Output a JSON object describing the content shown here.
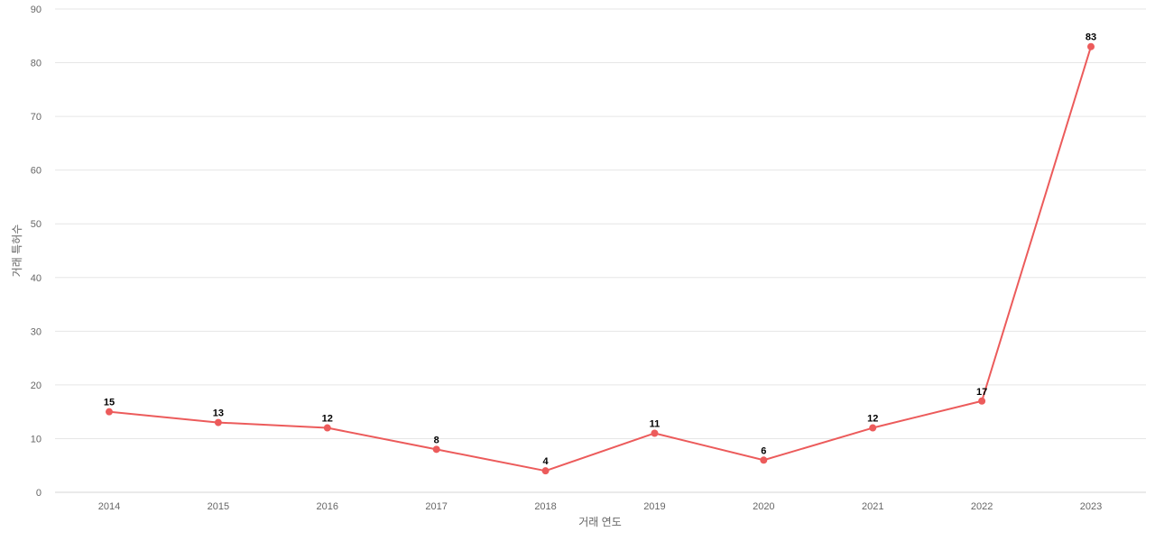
{
  "chart_data": {
    "type": "line",
    "title": "",
    "xlabel": "거래 연도",
    "ylabel": "거래 특허수",
    "categories": [
      "2014",
      "2015",
      "2016",
      "2017",
      "2018",
      "2019",
      "2020",
      "2021",
      "2022",
      "2023"
    ],
    "series": [
      {
        "values": [
          15,
          13,
          12,
          8,
          4,
          11,
          6,
          12,
          17,
          83
        ],
        "color": "#ec5b5b"
      }
    ],
    "ylim": [
      0,
      90
    ],
    "yticks": [
      0,
      10,
      20,
      30,
      40,
      50,
      60,
      70,
      80,
      90
    ],
    "grid": true,
    "legend": "none",
    "data_labels": true
  }
}
